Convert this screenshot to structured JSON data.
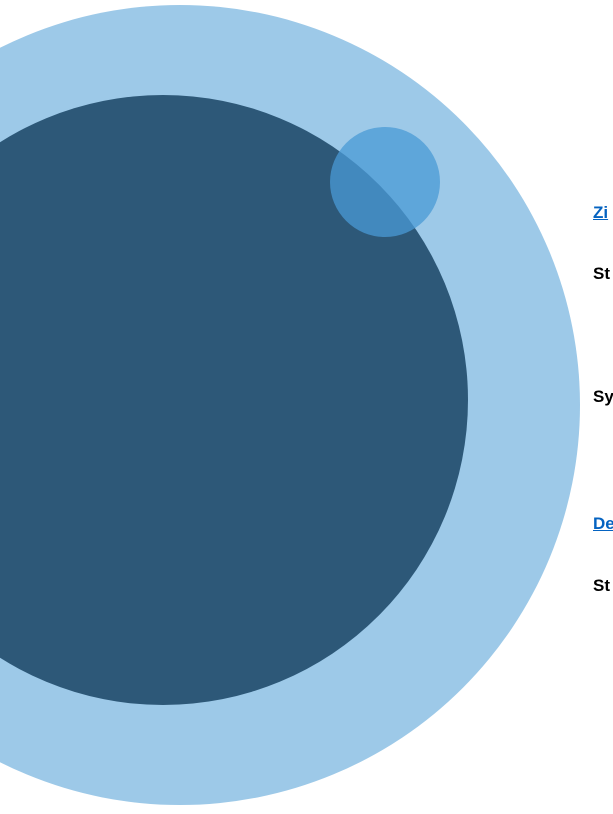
{
  "lines": [
    {
      "text": "Zi"
    },
    {
      "text": "St"
    },
    {
      "text": "Sy"
    },
    {
      "text": "De"
    },
    {
      "text": "St"
    }
  ]
}
